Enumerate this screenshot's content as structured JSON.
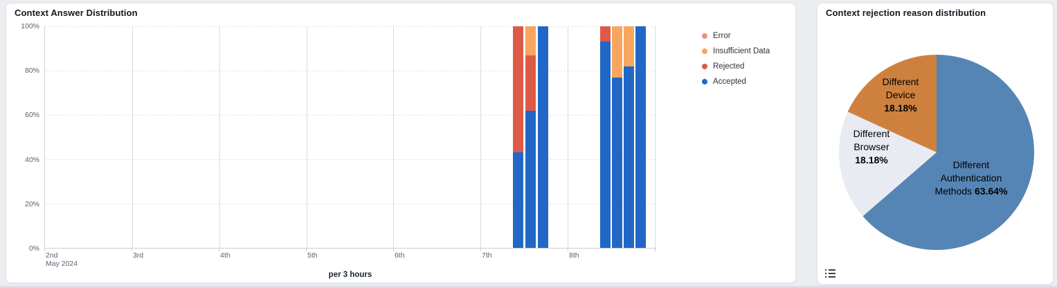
{
  "icons": {
    "pie_card_bottom_left": "list-legend-icon"
  },
  "colors": {
    "page_bg": "#ECEDF0",
    "card_bg": "#FFFFFF",
    "accepted": "#2168C6",
    "rejected": "#DD5A46",
    "insufficient_data": "#F7A55F",
    "error": "#E8937D",
    "pie_blue": "#5585B5",
    "pie_light": "#E8ECF2",
    "pie_orange": "#CE813E"
  },
  "chart_data": [
    {
      "type": "bar",
      "stacked": true,
      "title": "Context Answer Distribution",
      "xlabel": "per 3 hours",
      "ylabel": "",
      "ylim": [
        0,
        100
      ],
      "unit": "%",
      "grid": true,
      "legend_position": "right",
      "y_ticks": [
        {
          "label": "100%",
          "value": 100
        },
        {
          "label": "80%",
          "value": 80
        },
        {
          "label": "60%",
          "value": 60
        },
        {
          "label": "40%",
          "value": 40
        },
        {
          "label": "20%",
          "value": 20
        },
        {
          "label": "0%",
          "value": 0
        }
      ],
      "x_ticks": [
        {
          "label": "2nd",
          "sublabel": "May 2024",
          "pct": 0
        },
        {
          "label": "3rd",
          "pct": 14.25
        },
        {
          "label": "4th",
          "pct": 28.51
        },
        {
          "label": "5th",
          "pct": 42.76
        },
        {
          "label": "6th",
          "pct": 57.01
        },
        {
          "label": "7th",
          "pct": 71.27
        },
        {
          "label": "8th",
          "pct": 85.52
        },
        {
          "label": "",
          "pct": 99.77
        }
      ],
      "legend": [
        {
          "label": "Error",
          "color": "#E8937D"
        },
        {
          "label": "Insufficient Data",
          "color": "#F7A55F"
        },
        {
          "label": "Rejected",
          "color": "#DD5A46"
        },
        {
          "label": "Accepted",
          "color": "#2168C6"
        }
      ],
      "series_colors": {
        "Accepted": "#2168C6",
        "Rejected": "#DD5A46",
        "Insufficient Data": "#F7A55F",
        "Error": "#E8937D"
      },
      "bars": [
        {
          "date": "May 7",
          "x_pct": 76.58,
          "stack": [
            {
              "name": "Accepted",
              "value": 43
            },
            {
              "name": "Rejected",
              "value": 57
            }
          ]
        },
        {
          "date": "May 7",
          "x_pct": 78.62,
          "stack": [
            {
              "name": "Accepted",
              "value": 62
            },
            {
              "name": "Rejected",
              "value": 25
            },
            {
              "name": "Insufficient Data",
              "value": 13
            }
          ]
        },
        {
          "date": "May 7",
          "x_pct": 80.66,
          "stack": [
            {
              "name": "Accepted",
              "value": 100
            }
          ]
        },
        {
          "date": "May 8",
          "x_pct": 90.84,
          "stack": [
            {
              "name": "Accepted",
              "value": 93
            },
            {
              "name": "Rejected",
              "value": 7
            }
          ]
        },
        {
          "date": "May 8",
          "x_pct": 92.76,
          "stack": [
            {
              "name": "Accepted",
              "value": 77
            },
            {
              "name": "Insufficient Data",
              "value": 23
            }
          ]
        },
        {
          "date": "May 8",
          "x_pct": 94.68,
          "stack": [
            {
              "name": "Accepted",
              "value": 82
            },
            {
              "name": "Insufficient Data",
              "value": 18
            }
          ]
        },
        {
          "date": "May 8",
          "x_pct": 96.61,
          "stack": [
            {
              "name": "Accepted",
              "value": 100
            }
          ]
        }
      ]
    },
    {
      "type": "pie",
      "title": "Context rejection reason distribution",
      "start_angle_deg": 0,
      "direction": "clockwise",
      "slices": [
        {
          "label": "Different Authentication Methods",
          "label_lines": [
            "Different",
            "Authentication",
            "Methods"
          ],
          "pct": 63.64,
          "pct_label": "63.64%",
          "color": "#5585B5"
        },
        {
          "label": "Different Browser",
          "label_lines": [
            "Different",
            "Browser"
          ],
          "pct": 18.18,
          "pct_label": "18.18%",
          "color": "#E8ECF2"
        },
        {
          "label": "Different Device",
          "label_lines": [
            "Different",
            "Device"
          ],
          "pct": 18.18,
          "pct_label": "18.18%",
          "color": "#CE813E"
        }
      ]
    }
  ]
}
